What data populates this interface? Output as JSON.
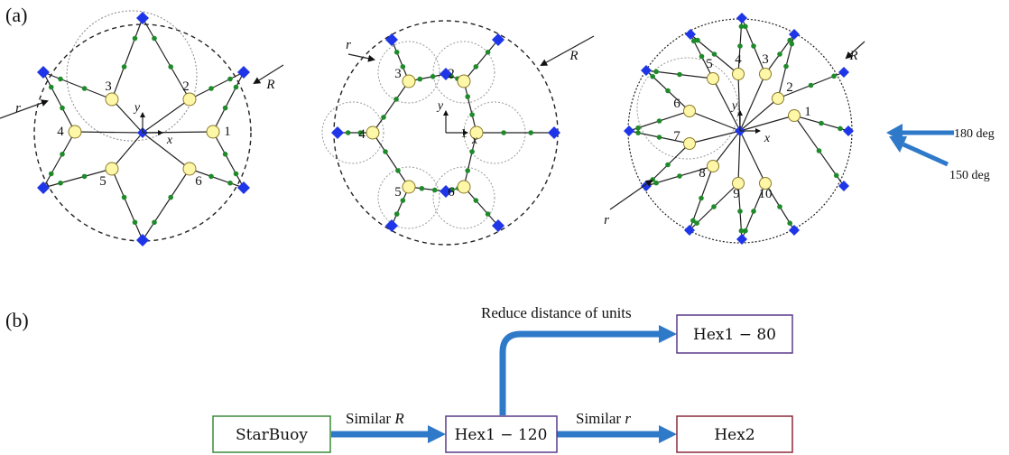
{
  "panel_labels": {
    "a": "(a)",
    "b": "(b)"
  },
  "labels": {
    "R": "R",
    "r": "r",
    "x": "x",
    "y": "y"
  },
  "layouts": {
    "starbuoy": {
      "numbers": [
        "1",
        "2",
        "3",
        "4",
        "5",
        "6"
      ]
    },
    "hex": {
      "numbers": [
        "1",
        "2",
        "3",
        "4",
        "5",
        "6"
      ]
    },
    "ten": {
      "numbers": [
        "1",
        "2",
        "3",
        "4",
        "5",
        "6",
        "7",
        "8",
        "9",
        "10"
      ]
    }
  },
  "waves": {
    "deg180": "180 deg",
    "deg150": "150 deg"
  },
  "flow": {
    "boxes": {
      "starbuoy": "StarBuoy",
      "hex1_120": "Hex1 − 120",
      "hex1_80": "Hex1 − 80",
      "hex2": "Hex2"
    },
    "arrows": {
      "similar_R_prefix": "Similar",
      "similar_R_var": "R",
      "similar_r_prefix": "Similar",
      "similar_r_var": "r",
      "reduce": "Reduce distance of units"
    }
  },
  "colors": {
    "anchor": "#1f35e8",
    "float": "#fff7a8",
    "float_stroke": "#8a7a2a",
    "bead": "#1e8a2a",
    "arrow": "#2f79c9",
    "box_green": "#3a8a3a",
    "box_purple": "#5a3a8a",
    "box_red": "#8a2a3a"
  }
}
